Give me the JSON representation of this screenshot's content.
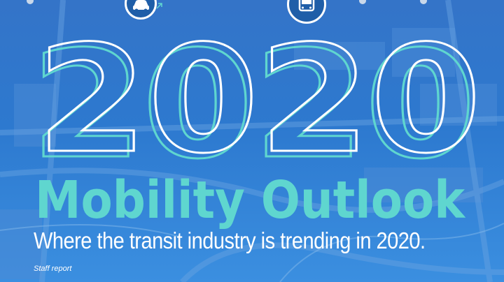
{
  "headline": {
    "year": "2020",
    "title": "Mobility Outlook",
    "subtitle": "Where the transit industry is trending in 2020.",
    "byline": "Staff report"
  },
  "icons": [
    "car-icon",
    "bus-icon"
  ],
  "colors": {
    "background": "#2f73c9",
    "year_outline_white": "#ffffff",
    "year_outline_teal": "#5fd6cf",
    "title": "#5fd6cf",
    "text": "#ffffff"
  }
}
